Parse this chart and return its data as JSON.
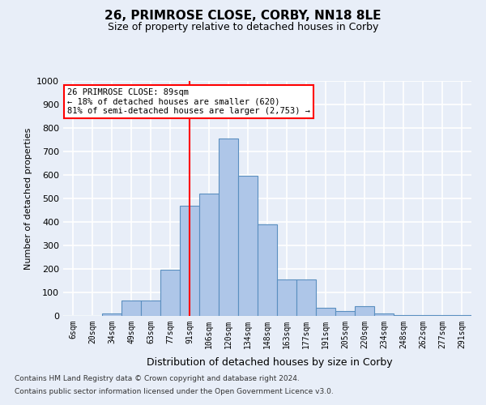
{
  "title": "26, PRIMROSE CLOSE, CORBY, NN18 8LE",
  "subtitle": "Size of property relative to detached houses in Corby",
  "xlabel": "Distribution of detached houses by size in Corby",
  "ylabel": "Number of detached properties",
  "categories": [
    "6sqm",
    "20sqm",
    "34sqm",
    "49sqm",
    "63sqm",
    "77sqm",
    "91sqm",
    "106sqm",
    "120sqm",
    "134sqm",
    "148sqm",
    "163sqm",
    "177sqm",
    "191sqm",
    "205sqm",
    "220sqm",
    "234sqm",
    "248sqm",
    "262sqm",
    "277sqm",
    "291sqm"
  ],
  "values": [
    0,
    0,
    10,
    65,
    65,
    195,
    470,
    520,
    755,
    595,
    390,
    155,
    155,
    35,
    20,
    40,
    10,
    5,
    2,
    2,
    2
  ],
  "bar_color": "#aec6e8",
  "bar_edge_color": "#5a8fc0",
  "vline_x": 6,
  "vline_color": "red",
  "ylim": [
    0,
    1000
  ],
  "yticks": [
    0,
    100,
    200,
    300,
    400,
    500,
    600,
    700,
    800,
    900,
    1000
  ],
  "annotation_text": "26 PRIMROSE CLOSE: 89sqm\n← 18% of detached houses are smaller (620)\n81% of semi-detached houses are larger (2,753) →",
  "annotation_box_color": "white",
  "annotation_box_edge": "red",
  "footnote1": "Contains HM Land Registry data © Crown copyright and database right 2024.",
  "footnote2": "Contains public sector information licensed under the Open Government Licence v3.0.",
  "background_color": "#e8eef8",
  "grid_color": "white"
}
